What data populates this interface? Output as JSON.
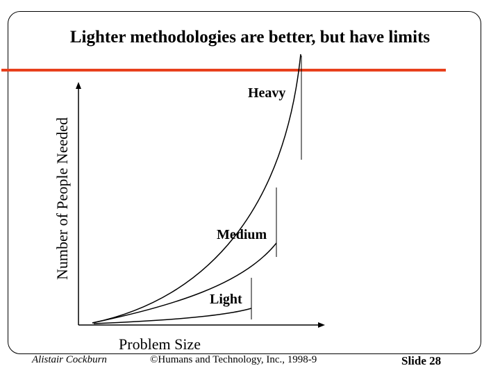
{
  "slide": {
    "title": "Lighter methodologies are better, but have limits",
    "footer": {
      "author": "Alistair Cockburn",
      "copyright": "©Humans and Technology, Inc., 1998-9",
      "slide_number": "Slide 28"
    }
  },
  "diagram": {
    "y_axis_label": "Number of People Needed",
    "x_axis_label": "Problem Size",
    "curves": [
      {
        "label": "Heavy"
      },
      {
        "label": "Medium"
      },
      {
        "label": "Light"
      }
    ],
    "colors": {
      "limit_line": "#e8401c",
      "ink": "#000000"
    }
  }
}
